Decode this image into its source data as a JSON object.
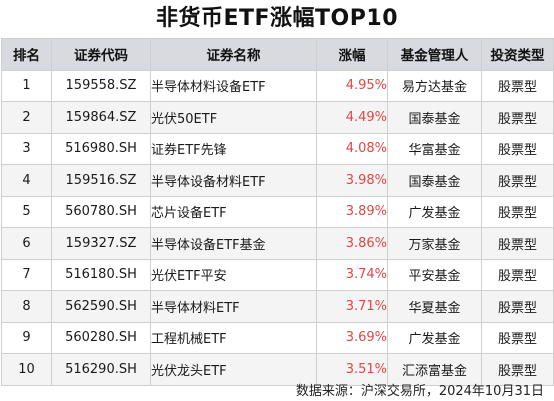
{
  "title": "非货币ETF涨幅TOP10",
  "colors": {
    "header_bg": "#d8dae0",
    "change_text": "#e04646",
    "alt_row_bg": "#f4f4f4"
  },
  "table": {
    "headers": [
      "排名",
      "证券代码",
      "证券名称",
      "涨幅",
      "基金管理人",
      "投资类型"
    ],
    "rows": [
      [
        "1",
        "159558.SZ",
        "半导体材料设备ETF",
        "4.95%",
        "易方达基金",
        "股票型"
      ],
      [
        "2",
        "159864.SZ",
        "光伏50ETF",
        "4.49%",
        "国泰基金",
        "股票型"
      ],
      [
        "3",
        "516980.SH",
        "证券ETF先锋",
        "4.08%",
        "华富基金",
        "股票型"
      ],
      [
        "4",
        "159516.SZ",
        "半导体设备材料ETF",
        "3.98%",
        "国泰基金",
        "股票型"
      ],
      [
        "5",
        "560780.SH",
        "芯片设备ETF",
        "3.89%",
        "广发基金",
        "股票型"
      ],
      [
        "6",
        "159327.SZ",
        "半导体设备ETF基金",
        "3.86%",
        "万家基金",
        "股票型"
      ],
      [
        "7",
        "516180.SH",
        "光伏ETF平安",
        "3.74%",
        "平安基金",
        "股票型"
      ],
      [
        "8",
        "562590.SH",
        "半导体材料ETF",
        "3.71%",
        "华夏基金",
        "股票型"
      ],
      [
        "9",
        "560280.SH",
        "工程机械ETF",
        "3.69%",
        "广发基金",
        "股票型"
      ],
      [
        "10",
        "516290.SH",
        "光伏龙头ETF",
        "3.51%",
        "汇添富基金",
        "股票型"
      ]
    ]
  },
  "footer": "数据来源：沪深交易所，2024年10月31日"
}
